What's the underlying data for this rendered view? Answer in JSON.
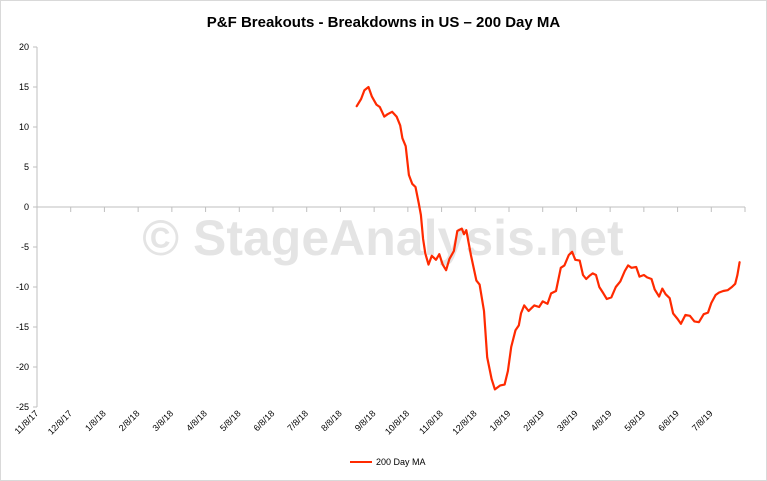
{
  "chart_data": {
    "type": "line",
    "title": "P&F Breakouts - Breakdowns in US – 200 Day MA",
    "xlabel": "",
    "ylabel": "",
    "ylim": [
      -25,
      20
    ],
    "yticks": [
      "20",
      "15",
      "10",
      "5",
      "0",
      "-5",
      "-10",
      "-15",
      "-20",
      "-25"
    ],
    "xticks": [
      "11/8/17",
      "12/8/17",
      "1/8/18",
      "2/8/18",
      "3/8/18",
      "4/8/18",
      "5/8/18",
      "6/8/18",
      "7/8/18",
      "8/8/18",
      "9/8/18",
      "10/8/18",
      "11/8/18",
      "12/8/18",
      "1/8/19",
      "2/8/19",
      "3/8/19",
      "4/8/19",
      "5/8/19",
      "6/8/19",
      "7/8/19"
    ],
    "grid": false,
    "legend_position": "bottom",
    "watermark": "© StageAnalysis.net",
    "series": [
      {
        "name": "200 Day MA",
        "color": "#ff2a00",
        "points": [
          [
            "2018-08-23",
            12.6
          ],
          [
            "2018-08-27",
            13.5
          ],
          [
            "2018-08-30",
            14.6
          ],
          [
            "2018-09-03",
            15.0
          ],
          [
            "2018-09-06",
            13.8
          ],
          [
            "2018-09-10",
            12.8
          ],
          [
            "2018-09-13",
            12.5
          ],
          [
            "2018-09-17",
            11.3
          ],
          [
            "2018-09-20",
            11.6
          ],
          [
            "2018-09-24",
            11.9
          ],
          [
            "2018-09-28",
            11.3
          ],
          [
            "2018-10-01",
            10.2
          ],
          [
            "2018-10-03",
            8.6
          ],
          [
            "2018-10-06",
            7.6
          ],
          [
            "2018-10-09",
            4.0
          ],
          [
            "2018-10-12",
            2.9
          ],
          [
            "2018-10-15",
            2.5
          ],
          [
            "2018-10-18",
            0.5
          ],
          [
            "2018-10-20",
            -1.0
          ],
          [
            "2018-10-22",
            -4.0
          ],
          [
            "2018-10-24",
            -5.8
          ],
          [
            "2018-10-27",
            -7.2
          ],
          [
            "2018-10-30",
            -6.1
          ],
          [
            "2018-11-03",
            -6.6
          ],
          [
            "2018-11-06",
            -5.9
          ],
          [
            "2018-11-09",
            -7.2
          ],
          [
            "2018-11-12",
            -7.9
          ],
          [
            "2018-11-15",
            -6.5
          ],
          [
            "2018-11-19",
            -5.5
          ],
          [
            "2018-11-22",
            -3.0
          ],
          [
            "2018-11-26",
            -2.7
          ],
          [
            "2018-11-28",
            -3.4
          ],
          [
            "2018-11-30",
            -2.9
          ],
          [
            "2018-12-04",
            -6.0
          ],
          [
            "2018-12-09",
            -9.2
          ],
          [
            "2018-12-12",
            -9.7
          ],
          [
            "2018-12-16",
            -13.0
          ],
          [
            "2018-12-19",
            -18.8
          ],
          [
            "2018-12-23",
            -21.5
          ],
          [
            "2018-12-26",
            -22.8
          ],
          [
            "2018-12-31",
            -22.3
          ],
          [
            "2019-01-04",
            -22.2
          ],
          [
            "2019-01-07",
            -20.5
          ],
          [
            "2019-01-10",
            -17.5
          ],
          [
            "2019-01-14",
            -15.4
          ],
          [
            "2019-01-17",
            -14.8
          ],
          [
            "2019-01-19",
            -13.3
          ],
          [
            "2019-01-22",
            -12.3
          ],
          [
            "2019-01-26",
            -13.0
          ],
          [
            "2019-01-29",
            -12.6
          ],
          [
            "2019-02-01",
            -12.3
          ],
          [
            "2019-02-05",
            -12.5
          ],
          [
            "2019-02-08",
            -11.8
          ],
          [
            "2019-02-12",
            -12.1
          ],
          [
            "2019-02-15",
            -10.8
          ],
          [
            "2019-02-19",
            -10.5
          ],
          [
            "2019-02-23",
            -7.6
          ],
          [
            "2019-02-26",
            -7.3
          ],
          [
            "2019-03-01",
            -6.0
          ],
          [
            "2019-03-04",
            -5.6
          ],
          [
            "2019-03-07",
            -6.6
          ],
          [
            "2019-03-11",
            -6.7
          ],
          [
            "2019-03-14",
            -8.5
          ],
          [
            "2019-03-17",
            -9.0
          ],
          [
            "2019-03-20",
            -8.6
          ],
          [
            "2019-03-23",
            -8.3
          ],
          [
            "2019-03-26",
            -8.5
          ],
          [
            "2019-03-29",
            -10.0
          ],
          [
            "2019-04-02",
            -10.8
          ],
          [
            "2019-04-05",
            -11.5
          ],
          [
            "2019-04-09",
            -11.3
          ],
          [
            "2019-04-13",
            -10.0
          ],
          [
            "2019-04-17",
            -9.3
          ],
          [
            "2019-04-21",
            -8.0
          ],
          [
            "2019-04-24",
            -7.3
          ],
          [
            "2019-04-27",
            -7.6
          ],
          [
            "2019-05-01",
            -7.5
          ],
          [
            "2019-05-04",
            -8.7
          ],
          [
            "2019-05-08",
            -8.5
          ],
          [
            "2019-05-11",
            -8.8
          ],
          [
            "2019-05-15",
            -9.0
          ],
          [
            "2019-05-18",
            -10.3
          ],
          [
            "2019-05-22",
            -11.2
          ],
          [
            "2019-05-25",
            -10.2
          ],
          [
            "2019-05-28",
            -10.9
          ],
          [
            "2019-06-01",
            -11.4
          ],
          [
            "2019-06-04",
            -13.3
          ],
          [
            "2019-06-08",
            -14.0
          ],
          [
            "2019-06-11",
            -14.6
          ],
          [
            "2019-06-15",
            -13.5
          ],
          [
            "2019-06-19",
            -13.6
          ],
          [
            "2019-06-23",
            -14.3
          ],
          [
            "2019-06-27",
            -14.4
          ],
          [
            "2019-07-01",
            -13.4
          ],
          [
            "2019-07-05",
            -13.2
          ],
          [
            "2019-07-08",
            -12.0
          ],
          [
            "2019-07-12",
            -11.0
          ],
          [
            "2019-07-15",
            -10.7
          ],
          [
            "2019-07-19",
            -10.5
          ],
          [
            "2019-07-23",
            -10.4
          ],
          [
            "2019-07-27",
            -10.0
          ],
          [
            "2019-07-30",
            -9.6
          ],
          [
            "2019-08-01",
            -8.5
          ],
          [
            "2019-08-03",
            -6.9
          ]
        ]
      }
    ]
  }
}
